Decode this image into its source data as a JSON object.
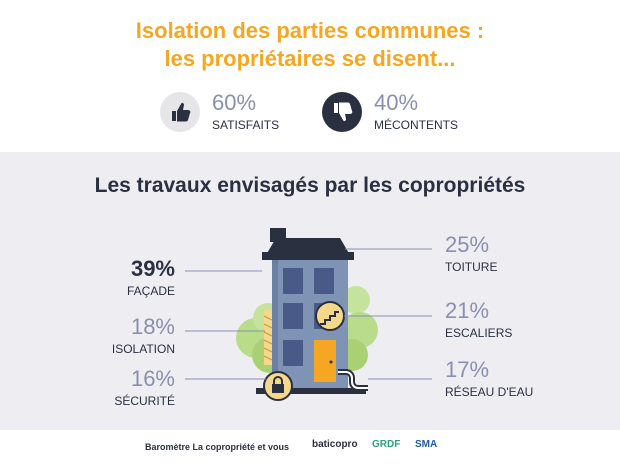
{
  "header": {
    "title_line1": "Isolation des parties communes :",
    "title_line2": "les propriétaires se disent..."
  },
  "satisfaction": [
    {
      "percent": "60%",
      "label": "SATISFAITS",
      "icon": "thumbs-up-icon"
    },
    {
      "percent": "40%",
      "label": "MÉCONTENTS",
      "icon": "thumbs-down-icon"
    }
  ],
  "section_title": "Les travaux envisagés par les copropriétés",
  "chart_data": {
    "type": "table",
    "categories": [
      "FAÇADE",
      "ISOLATION",
      "SÉCURITÉ",
      "TOITURE",
      "ESCALIERS",
      "RÉSEAU D'EAU"
    ],
    "values": [
      39,
      18,
      16,
      25,
      21,
      17
    ],
    "labels": [
      "39%",
      "18%",
      "16%",
      "25%",
      "21%",
      "17%"
    ],
    "title": "Les travaux envisagés par les copropriétés"
  },
  "footer": {
    "source": "Baromètre La copropriété et vous",
    "logos": [
      "baticopro",
      "GRDF",
      "SMA"
    ]
  },
  "colors": {
    "accent": "#f5a623",
    "dark": "#2b3040",
    "muted": "#8a8fb0",
    "building": "#7f93b5",
    "window": "#4a5a88",
    "door": "#f5a623",
    "background_band": "#eeeef2"
  }
}
